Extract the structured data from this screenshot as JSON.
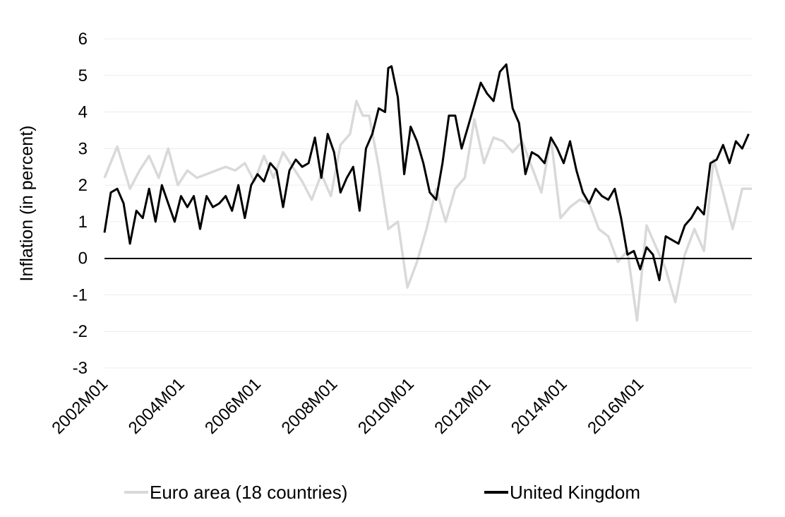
{
  "chart_data": {
    "type": "line",
    "title": "",
    "xlabel": "",
    "ylabel": "Inflation (in percent)",
    "ylim": [
      -3,
      6
    ],
    "yticks": [
      "-3",
      "-2",
      "-1",
      "0",
      "1",
      "2",
      "3",
      "4",
      "5",
      "6"
    ],
    "xticks": [
      "2002M01",
      "2004M01",
      "2006M01",
      "2008M01",
      "2010M01",
      "2012M01",
      "2014M01",
      "2016M01"
    ],
    "x_start": "2002M01",
    "x_end": "2017M12",
    "grid": "horizontal",
    "legend_position": "bottom",
    "series": [
      {
        "name": "Euro area (18 countries)",
        "color": "#d9d9d9",
        "points": [
          [
            "2002M01",
            2.2
          ],
          [
            "2002M05",
            3.05
          ],
          [
            "2002M09",
            1.9
          ],
          [
            "2002M12",
            2.4
          ],
          [
            "2003M03",
            2.8
          ],
          [
            "2003M06",
            2.2
          ],
          [
            "2003M09",
            3.0
          ],
          [
            "2003M12",
            2.0
          ],
          [
            "2004M03",
            2.4
          ],
          [
            "2004M06",
            2.2
          ],
          [
            "2004M09",
            2.3
          ],
          [
            "2004M12",
            2.4
          ],
          [
            "2005M03",
            2.5
          ],
          [
            "2005M06",
            2.4
          ],
          [
            "2005M09",
            2.6
          ],
          [
            "2005M12",
            2.1
          ],
          [
            "2006M03",
            2.8
          ],
          [
            "2006M06",
            2.2
          ],
          [
            "2006M09",
            2.9
          ],
          [
            "2006M12",
            2.5
          ],
          [
            "2007M03",
            2.1
          ],
          [
            "2007M06",
            1.6
          ],
          [
            "2007M09",
            2.3
          ],
          [
            "2007M12",
            1.7
          ],
          [
            "2008M03",
            3.1
          ],
          [
            "2008M06",
            3.4
          ],
          [
            "2008M08",
            4.3
          ],
          [
            "2008M10",
            3.9
          ],
          [
            "2008M12",
            3.9
          ],
          [
            "2009M03",
            2.5
          ],
          [
            "2009M06",
            0.8
          ],
          [
            "2009M09",
            1.0
          ],
          [
            "2009M12",
            -0.8
          ],
          [
            "2010M03",
            -0.1
          ],
          [
            "2010M06",
            0.8
          ],
          [
            "2010M09",
            1.9
          ],
          [
            "2010M12",
            1.0
          ],
          [
            "2011M03",
            1.9
          ],
          [
            "2011M06",
            2.2
          ],
          [
            "2011M09",
            3.8
          ],
          [
            "2011M12",
            2.6
          ],
          [
            "2012M03",
            3.3
          ],
          [
            "2012M06",
            3.2
          ],
          [
            "2012M09",
            2.9
          ],
          [
            "2012M12",
            3.2
          ],
          [
            "2013M03",
            2.5
          ],
          [
            "2013M06",
            1.8
          ],
          [
            "2013M09",
            3.3
          ],
          [
            "2013M12",
            1.1
          ],
          [
            "2014M03",
            1.4
          ],
          [
            "2014M06",
            1.6
          ],
          [
            "2014M09",
            1.5
          ],
          [
            "2014M12",
            0.8
          ],
          [
            "2015M03",
            0.6
          ],
          [
            "2015M06",
            -0.1
          ],
          [
            "2015M09",
            0.2
          ],
          [
            "2015M12",
            -1.7
          ],
          [
            "2016M03",
            0.9
          ],
          [
            "2016M06",
            0.3
          ],
          [
            "2016M09",
            -0.3
          ],
          [
            "2016M12",
            -1.2
          ],
          [
            "2017M03",
            0.1
          ],
          [
            "2017M06",
            0.8
          ],
          [
            "2017M09",
            0.2
          ],
          [
            "2017M12",
            2.7
          ],
          [
            "2018M03",
            1.8
          ],
          [
            "2018M06",
            0.8
          ],
          [
            "2018M09",
            1.9
          ],
          [
            "2018M12",
            1.9
          ]
        ]
      },
      {
        "name": "United Kingdom",
        "color": "#000000",
        "points": [
          [
            "2002M01",
            0.7
          ],
          [
            "2002M03",
            1.8
          ],
          [
            "2002M05",
            1.9
          ],
          [
            "2002M07",
            1.5
          ],
          [
            "2002M09",
            0.4
          ],
          [
            "2002M11",
            1.3
          ],
          [
            "2003M01",
            1.1
          ],
          [
            "2003M03",
            1.9
          ],
          [
            "2003M05",
            1.0
          ],
          [
            "2003M07",
            2.0
          ],
          [
            "2003M09",
            1.5
          ],
          [
            "2003M11",
            1.0
          ],
          [
            "2004M01",
            1.7
          ],
          [
            "2004M03",
            1.4
          ],
          [
            "2004M05",
            1.7
          ],
          [
            "2004M07",
            0.8
          ],
          [
            "2004M09",
            1.7
          ],
          [
            "2004M11",
            1.4
          ],
          [
            "2005M01",
            1.5
          ],
          [
            "2005M03",
            1.7
          ],
          [
            "2005M05",
            1.3
          ],
          [
            "2005M07",
            2.0
          ],
          [
            "2005M09",
            1.1
          ],
          [
            "2005M11",
            2.0
          ],
          [
            "2006M01",
            2.3
          ],
          [
            "2006M03",
            2.1
          ],
          [
            "2006M05",
            2.6
          ],
          [
            "2006M07",
            2.4
          ],
          [
            "2006M09",
            1.4
          ],
          [
            "2006M11",
            2.4
          ],
          [
            "2007M01",
            2.7
          ],
          [
            "2007M03",
            2.5
          ],
          [
            "2007M05",
            2.6
          ],
          [
            "2007M07",
            3.3
          ],
          [
            "2007M09",
            2.2
          ],
          [
            "2007M11",
            3.4
          ],
          [
            "2008M01",
            2.9
          ],
          [
            "2008M03",
            1.8
          ],
          [
            "2008M05",
            2.2
          ],
          [
            "2008M07",
            2.5
          ],
          [
            "2008M09",
            1.3
          ],
          [
            "2008M11",
            3.0
          ],
          [
            "2009M01",
            3.4
          ],
          [
            "2009M03",
            4.1
          ],
          [
            "2009M05",
            4.0
          ],
          [
            "2009M06",
            5.2
          ],
          [
            "2009M07",
            5.25
          ],
          [
            "2009M09",
            4.4
          ],
          [
            "2009M11",
            2.3
          ],
          [
            "2010M01",
            3.6
          ],
          [
            "2010M03",
            3.2
          ],
          [
            "2010M05",
            2.6
          ],
          [
            "2010M07",
            1.8
          ],
          [
            "2010M09",
            1.6
          ],
          [
            "2010M11",
            2.6
          ],
          [
            "2011M01",
            3.9
          ],
          [
            "2011M03",
            3.9
          ],
          [
            "2011M05",
            3.0
          ],
          [
            "2011M07",
            3.6
          ],
          [
            "2011M09",
            4.2
          ],
          [
            "2011M11",
            4.8
          ],
          [
            "2012M01",
            4.5
          ],
          [
            "2012M03",
            4.3
          ],
          [
            "2012M05",
            5.1
          ],
          [
            "2012M07",
            5.3
          ],
          [
            "2012M09",
            4.1
          ],
          [
            "2012M11",
            3.7
          ],
          [
            "2013M01",
            2.3
          ],
          [
            "2013M03",
            2.9
          ],
          [
            "2013M05",
            2.8
          ],
          [
            "2013M07",
            2.6
          ],
          [
            "2013M09",
            3.3
          ],
          [
            "2013M11",
            3.0
          ],
          [
            "2014M01",
            2.6
          ],
          [
            "2014M03",
            3.2
          ],
          [
            "2014M05",
            2.4
          ],
          [
            "2014M07",
            1.8
          ],
          [
            "2014M09",
            1.5
          ],
          [
            "2014M11",
            1.9
          ],
          [
            "2015M01",
            1.7
          ],
          [
            "2015M03",
            1.6
          ],
          [
            "2015M05",
            1.9
          ],
          [
            "2015M07",
            1.1
          ],
          [
            "2015M09",
            0.1
          ],
          [
            "2015M11",
            0.2
          ],
          [
            "2016M01",
            -0.3
          ],
          [
            "2016M03",
            0.3
          ],
          [
            "2016M05",
            0.1
          ],
          [
            "2016M07",
            -0.6
          ],
          [
            "2016M09",
            0.6
          ],
          [
            "2016M11",
            0.5
          ],
          [
            "2017M01",
            0.4
          ],
          [
            "2017M03",
            0.9
          ],
          [
            "2017M05",
            1.1
          ],
          [
            "2017M07",
            1.4
          ],
          [
            "2017M09",
            1.2
          ],
          [
            "2017M11",
            2.6
          ],
          [
            "2018M01",
            2.7
          ],
          [
            "2018M03",
            3.1
          ],
          [
            "2018M05",
            2.6
          ],
          [
            "2018M07",
            3.2
          ],
          [
            "2018M09",
            3.0
          ],
          [
            "2018M11",
            3.4
          ]
        ]
      }
    ]
  }
}
